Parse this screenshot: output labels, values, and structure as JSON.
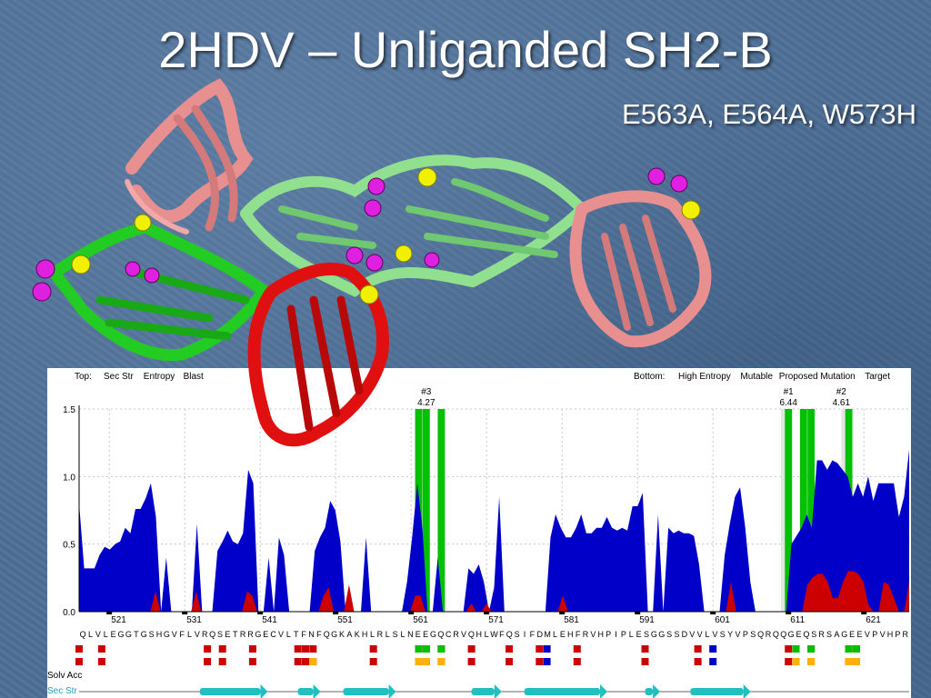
{
  "slide": {
    "title": "2HDV – Unliganded SH2-B",
    "subtitle": "E563A, E564A, W573H"
  },
  "colors": {
    "background": "#4e6f96",
    "entropy": "#0000c8",
    "mutable": "#cc0000",
    "proposed": "#00c000",
    "target": "#ffb000",
    "secstr": "#20c0c0",
    "chain_green": "#22cc22",
    "chain_light_green": "#90e090",
    "chain_red": "#e01010",
    "chain_salmon": "#e89090",
    "sphere_magenta": "#e020e0",
    "sphere_yellow": "#f0f000"
  },
  "legend": {
    "top_prefix": "Top:",
    "top_items": [
      {
        "label": "Sec Str",
        "color": "#0000c8"
      },
      {
        "label": "Entropy",
        "color": "#cc0000"
      },
      {
        "label": "Blast",
        "color": "#00c000"
      }
    ],
    "bottom_prefix": "Bottom:",
    "bottom_items": [
      {
        "label": "High Entropy",
        "color": "#0000c8"
      },
      {
        "label": "Mutable",
        "color": "#cc0000"
      },
      {
        "label": "Proposed Mutation",
        "color": "#00c000"
      },
      {
        "label": "Target",
        "color": "#ffb000"
      }
    ]
  },
  "track_labels": {
    "solv_acc": "Solv Acc",
    "sec_str": "Sec Str"
  },
  "chart_data": {
    "type": "area",
    "yticks": [
      "1.5",
      "1.0",
      "0.5",
      "0.0"
    ],
    "ylim": [
      0,
      1.5
    ],
    "residue_start": 517,
    "residue_end": 627,
    "xtick_labels": [
      "521",
      "531",
      "541",
      "551",
      "561",
      "571",
      "581",
      "591",
      "601",
      "611",
      "621"
    ],
    "sequence": "QLVLEGGTGSHGVFLVRQSETRRGECVLTFNFQGKAKHLRLSLNEEGQCRVQHLWFQSIFDMLEHFRVHPIPLESGGSSDVVLVSYVPSQRQQGEQSRSAGEEVPVHPR",
    "annotations": [
      {
        "rank": "#3",
        "value": "4.27",
        "residue": 563
      },
      {
        "rank": "#1",
        "value": "6.44",
        "residue": 611
      },
      {
        "rank": "#2",
        "value": "4.61",
        "residue": 618
      }
    ],
    "series": [
      {
        "name": "High Entropy",
        "values": [
          0.8,
          0.32,
          0.32,
          0.32,
          0.42,
          0.48,
          0.46,
          0.5,
          0.52,
          0.62,
          0.58,
          0.76,
          0.76,
          0.84,
          0.95,
          0.7,
          0.0,
          0.4,
          0.0,
          0.0,
          0.0,
          0.0,
          0.0,
          0.65,
          0.0,
          0.0,
          0.0,
          0.45,
          0.52,
          0.6,
          0.52,
          0.5,
          0.58,
          1.05,
          0.95,
          0.0,
          0.0,
          0.4,
          0.0,
          0.55,
          0.42,
          0.0,
          0.0,
          0.0,
          0.0,
          0.0,
          0.45,
          0.55,
          0.62,
          0.82,
          0.75,
          0.52,
          0.0,
          0.0,
          0.0,
          0.0,
          0.55,
          0.0,
          0.0,
          0.0,
          0.0,
          0.0,
          0.0,
          0.0,
          0.22,
          0.55,
          0.95,
          0.62,
          0.0,
          0.0,
          0.4,
          0.0,
          0.0,
          0.0,
          0.0,
          0.0,
          0.32,
          0.28,
          0.35,
          0.22,
          0.0,
          0.18,
          0.85,
          0.0,
          0.0,
          0.0,
          0.0,
          0.0,
          0.0,
          0.0,
          0.0,
          0.0,
          0.55,
          0.72,
          0.62,
          0.55,
          0.55,
          0.62,
          0.72,
          0.58,
          0.58,
          0.62,
          0.62,
          0.7,
          0.62,
          0.6,
          0.62,
          0.6,
          0.78,
          0.78,
          0.88,
          0.0,
          0.0,
          0.72,
          0.0,
          0.62,
          0.58,
          0.6,
          0.58,
          0.58,
          0.56,
          0.35,
          0.0,
          0.0,
          0.0,
          0.0,
          0.42,
          0.65,
          0.85,
          0.92,
          0.62,
          0.22,
          0.0,
          0.0,
          0.0,
          0.0,
          0.0,
          0.0,
          0.0,
          0.5,
          0.56,
          0.62,
          0.72,
          0.62,
          1.12,
          1.12,
          1.05,
          1.12,
          1.1,
          1.05,
          1.0,
          0.85,
          0.95,
          0.85,
          1.0,
          0.82,
          0.95,
          0.95,
          0.95,
          0.95,
          0.7,
          0.85,
          1.2
        ]
      },
      {
        "name": "Mutable",
        "values": [
          0,
          0,
          0,
          0,
          0,
          0,
          0,
          0,
          0,
          0,
          0,
          0,
          0,
          0,
          0,
          0.15,
          0,
          0,
          0,
          0,
          0,
          0,
          0,
          0.15,
          0,
          0,
          0,
          0,
          0,
          0,
          0,
          0,
          0,
          0.15,
          0.12,
          0,
          0,
          0,
          0,
          0,
          0,
          0,
          0,
          0,
          0,
          0,
          0,
          0,
          0.12,
          0.18,
          0,
          0,
          0,
          0.2,
          0,
          0,
          0,
          0,
          0,
          0,
          0,
          0,
          0,
          0,
          0,
          0,
          0.12,
          0.12,
          0,
          0,
          0,
          0,
          0,
          0,
          0,
          0,
          0,
          0.06,
          0,
          0,
          0.06,
          0,
          0,
          0,
          0,
          0,
          0,
          0,
          0,
          0,
          0,
          0,
          0,
          0,
          0,
          0.12,
          0,
          0,
          0,
          0,
          0,
          0,
          0,
          0,
          0,
          0,
          0,
          0,
          0,
          0,
          0,
          0,
          0,
          0,
          0,
          0,
          0,
          0,
          0,
          0,
          0,
          0,
          0,
          0,
          0,
          0,
          0,
          0,
          0.22,
          0,
          0,
          0,
          0,
          0,
          0,
          0,
          0,
          0,
          0,
          0,
          0,
          0,
          0,
          0.2,
          0.25,
          0.28,
          0.28,
          0.22,
          0.1,
          0.1,
          0.22,
          0.3,
          0.3,
          0.28,
          0.22,
          0.05,
          0,
          0,
          0.22,
          0.2,
          0.1,
          0,
          0,
          0.22
        ]
      }
    ],
    "proposed_bars_residues": [
      562,
      563,
      565,
      611,
      613,
      614,
      619
    ],
    "shaded_bands_residues": [
      [
        610,
        611
      ],
      [
        618,
        619
      ]
    ],
    "mutable_marks_residues": [
      517,
      520,
      534,
      536,
      540,
      546,
      547,
      548,
      556,
      562,
      563,
      565,
      569,
      574,
      578,
      583,
      592,
      599,
      611,
      612,
      614,
      619,
      620
    ],
    "target_marks_residues": [
      548,
      562,
      563,
      565,
      612,
      614,
      619,
      620
    ],
    "proposed_marks_residues": [
      562,
      563,
      565,
      612,
      614,
      619,
      620
    ],
    "blue_marks_residues": [
      579,
      601
    ],
    "secstr_segments_residues": [
      [
        533,
        542
      ],
      [
        546,
        549
      ],
      [
        552,
        559
      ],
      [
        569,
        573
      ],
      [
        576,
        587
      ],
      [
        592,
        594
      ],
      [
        598,
        606
      ]
    ]
  }
}
